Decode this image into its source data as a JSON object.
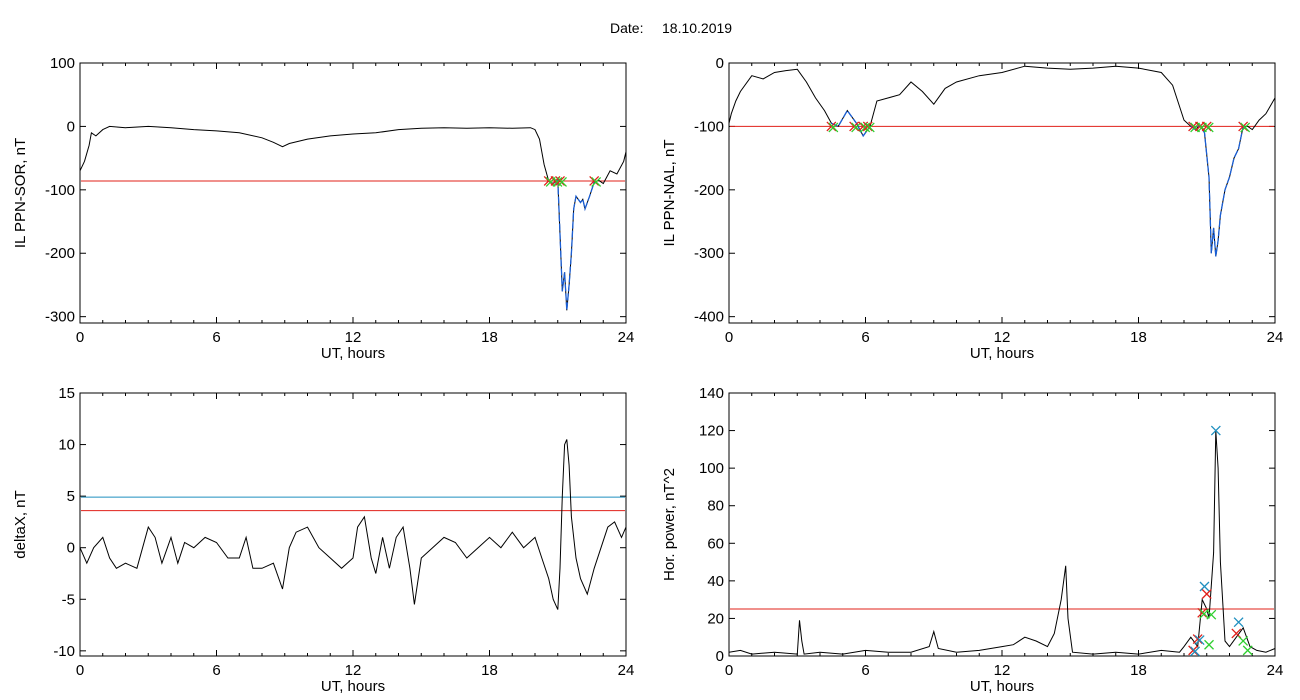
{
  "header": {
    "date_label": "Date:",
    "date_value": "18.10.2019"
  },
  "colors": {
    "data": "#000000",
    "threshold_red": "#e0201a",
    "threshold_blue": "#1f8fbf",
    "segment_blue": "#1a5fd6",
    "marker_red": "#e0201a",
    "marker_green": "#2fcf2f",
    "marker_blue": "#1f8fbf"
  },
  "chart_data": [
    {
      "id": "sor",
      "type": "line",
      "xlabel": "UT, hours",
      "ylabel": "IL PPN-SOR, nT",
      "xlim": [
        0,
        24
      ],
      "ylim": [
        -310,
        100
      ],
      "xticks": [
        0,
        6,
        12,
        18,
        24
      ],
      "yticks": [
        100,
        0,
        -100,
        -200,
        -300
      ],
      "thresholds": [
        {
          "color": "red",
          "y": -86
        }
      ],
      "series": [
        {
          "x": [
            0,
            0.2,
            0.4,
            0.5,
            0.7,
            1,
            1.3,
            2,
            3,
            4,
            5,
            6,
            7,
            8,
            8.5,
            8.9,
            9.2,
            10,
            11,
            12,
            13,
            14,
            15,
            16,
            17,
            18,
            19,
            19.8,
            20,
            20.2,
            20.4,
            20.6,
            20.8,
            21,
            21.1,
            21.2,
            21.3,
            21.4,
            21.5,
            21.6,
            21.7,
            21.8,
            21.9,
            22,
            22.1,
            22.2,
            22.4,
            22.6,
            22.8,
            23,
            23.3,
            23.6,
            23.9,
            24
          ],
          "y": [
            -70,
            -55,
            -30,
            -10,
            -15,
            -5,
            0,
            -2,
            0,
            -2,
            -5,
            -7,
            -10,
            -18,
            -25,
            -32,
            -27,
            -20,
            -15,
            -12,
            -10,
            -5,
            -3,
            -2,
            -3,
            -2,
            -3,
            -2,
            -5,
            -20,
            -60,
            -86,
            -90,
            -85,
            -170,
            -260,
            -230,
            -290,
            -250,
            -200,
            -130,
            -110,
            -115,
            -120,
            -115,
            -130,
            -110,
            -88,
            -85,
            -90,
            -70,
            -75,
            -55,
            -40
          ]
        }
      ],
      "highlight_segments": [
        {
          "x_start": 20.6,
          "x_end": 22.6,
          "color": "blue"
        }
      ],
      "markers": [
        {
          "x": 20.6,
          "y": -86,
          "colors": [
            "red",
            "green"
          ]
        },
        {
          "x": 20.9,
          "y": -86,
          "colors": [
            "red",
            "green"
          ]
        },
        {
          "x": 21.1,
          "y": -86,
          "colors": [
            "red",
            "green"
          ]
        },
        {
          "x": 22.6,
          "y": -86,
          "colors": [
            "red",
            "green"
          ]
        }
      ]
    },
    {
      "id": "nal",
      "type": "line",
      "xlabel": "UT, hours",
      "ylabel": "IL PPN-NAL, nT",
      "xlim": [
        0,
        24
      ],
      "ylim": [
        -410,
        0
      ],
      "xticks": [
        0,
        6,
        12,
        18,
        24
      ],
      "yticks": [
        0,
        -100,
        -200,
        -300,
        -400
      ],
      "thresholds": [
        {
          "color": "red",
          "y": -100
        }
      ],
      "series": [
        {
          "x": [
            0,
            0.1,
            0.3,
            0.5,
            1,
            1.5,
            2,
            2.5,
            3,
            3.4,
            3.8,
            4.2,
            4.5,
            4.8,
            5.2,
            5.6,
            5.9,
            6.2,
            6.5,
            7,
            7.5,
            8,
            8.5,
            9,
            9.5,
            10,
            11,
            12,
            13,
            14,
            15,
            16,
            17,
            18,
            19,
            19.5,
            20,
            20.3,
            20.5,
            20.7,
            20.9,
            21.1,
            21.2,
            21.3,
            21.4,
            21.5,
            21.6,
            21.8,
            22,
            22.2,
            22.4,
            22.6,
            22.8,
            23,
            23.3,
            23.6,
            24
          ],
          "y": [
            -95,
            -80,
            -60,
            -45,
            -20,
            -25,
            -15,
            -12,
            -10,
            -30,
            -55,
            -75,
            -95,
            -100,
            -75,
            -95,
            -115,
            -100,
            -60,
            -55,
            -50,
            -30,
            -45,
            -65,
            -40,
            -30,
            -20,
            -15,
            -5,
            -8,
            -10,
            -8,
            -5,
            -8,
            -15,
            -35,
            -90,
            -100,
            -105,
            -98,
            -110,
            -180,
            -300,
            -260,
            -305,
            -280,
            -240,
            -200,
            -180,
            -150,
            -135,
            -100,
            -100,
            -105,
            -90,
            -80,
            -55
          ]
        }
      ],
      "highlight_segments": [
        {
          "x_start": 4.5,
          "x_end": 6.2,
          "color": "blue"
        },
        {
          "x_start": 20.3,
          "x_end": 22.6,
          "color": "blue"
        }
      ],
      "markers": [
        {
          "x": 4.5,
          "y": -100,
          "colors": [
            "red",
            "green"
          ]
        },
        {
          "x": 5.5,
          "y": -100,
          "colors": [
            "red",
            "green"
          ]
        },
        {
          "x": 5.9,
          "y": -100,
          "colors": [
            "red",
            "green"
          ]
        },
        {
          "x": 6.1,
          "y": -100,
          "colors": [
            "red",
            "green"
          ]
        },
        {
          "x": 20.4,
          "y": -100,
          "colors": [
            "red",
            "green"
          ]
        },
        {
          "x": 20.7,
          "y": -100,
          "colors": [
            "red",
            "green"
          ]
        },
        {
          "x": 21.0,
          "y": -100,
          "colors": [
            "red",
            "green"
          ]
        },
        {
          "x": 22.6,
          "y": -100,
          "colors": [
            "red",
            "green"
          ]
        }
      ]
    },
    {
      "id": "deltax",
      "type": "line",
      "xlabel": "UT, hours",
      "ylabel": "deltaX, nT",
      "xlim": [
        0,
        24
      ],
      "ylim": [
        -10.5,
        15
      ],
      "xticks": [
        0,
        6,
        12,
        18,
        24
      ],
      "yticks": [
        15,
        10,
        5,
        0,
        -5,
        -10
      ],
      "thresholds": [
        {
          "color": "blue",
          "y": 4.9
        },
        {
          "color": "red",
          "y": 3.6
        }
      ],
      "series": [
        {
          "x": [
            0,
            0.3,
            0.6,
            1,
            1.3,
            1.6,
            2,
            2.5,
            3,
            3.3,
            3.6,
            4,
            4.3,
            4.6,
            5,
            5.5,
            6,
            6.5,
            7,
            7.3,
            7.6,
            8,
            8.5,
            8.9,
            9.2,
            9.5,
            10,
            10.5,
            11,
            11.5,
            12,
            12.2,
            12.5,
            12.8,
            13,
            13.3,
            13.6,
            13.9,
            14.2,
            14.5,
            14.7,
            15,
            15.5,
            16,
            16.5,
            17,
            17.5,
            18,
            18.5,
            19,
            19.5,
            20,
            20.3,
            20.6,
            20.8,
            21,
            21.1,
            21.2,
            21.3,
            21.4,
            21.5,
            21.6,
            21.8,
            22,
            22.3,
            22.6,
            22.9,
            23.2,
            23.5,
            23.8,
            24
          ],
          "y": [
            0,
            -1.5,
            0,
            1,
            -1,
            -2,
            -1.5,
            -2,
            2,
            1,
            -1.5,
            1,
            -1.5,
            0.5,
            0,
            1,
            0.5,
            -1,
            -1,
            1,
            -2,
            -2,
            -1.5,
            -4,
            0,
            1.5,
            2,
            0,
            -1,
            -2,
            -1,
            2,
            3,
            -1,
            -2.5,
            1,
            -2,
            1,
            2,
            -2,
            -5.5,
            -1,
            0,
            1,
            0.5,
            -1,
            0,
            1,
            0,
            1.5,
            0,
            1,
            -1,
            -3,
            -5,
            -6,
            -2,
            5,
            10,
            10.5,
            8,
            3,
            -1,
            -3,
            -4.5,
            -2,
            0,
            2,
            2.5,
            1,
            2
          ]
        }
      ],
      "highlight_segments": [],
      "markers": []
    },
    {
      "id": "power",
      "type": "line",
      "xlabel": "UT, hours",
      "ylabel": "Hor. power, nT^2",
      "xlim": [
        0,
        24
      ],
      "ylim": [
        0,
        140
      ],
      "xticks": [
        0,
        6,
        12,
        18,
        24
      ],
      "yticks": [
        140,
        120,
        100,
        80,
        60,
        40,
        20,
        0
      ],
      "thresholds": [
        {
          "color": "red",
          "y": 25
        }
      ],
      "series": [
        {
          "x": [
            0,
            0.5,
            1,
            2,
            3,
            3.05,
            3.1,
            3.2,
            3.3,
            4,
            5,
            6,
            7,
            8,
            8.8,
            9,
            9.2,
            10,
            11,
            12,
            12.5,
            13,
            13.5,
            14,
            14.3,
            14.6,
            14.8,
            14.9,
            15.1,
            16,
            17,
            18,
            19,
            19.8,
            20,
            20.3,
            20.6,
            20.8,
            21,
            21.1,
            21.3,
            21.4,
            21.5,
            21.6,
            21.8,
            22,
            22.3,
            22.6,
            22.9,
            23.2,
            23.6,
            24
          ],
          "y": [
            2,
            3,
            1,
            2,
            1,
            10,
            19,
            8,
            1,
            2,
            1,
            3,
            2,
            2,
            5,
            13,
            4,
            2,
            3,
            5,
            6,
            10,
            8,
            5,
            12,
            30,
            48,
            20,
            2,
            1,
            2,
            1,
            3,
            2,
            5,
            10,
            5,
            30,
            25,
            20,
            55,
            120,
            100,
            50,
            8,
            5,
            10,
            15,
            5,
            3,
            2,
            4
          ]
        }
      ],
      "highlight_segments": [],
      "markers": [
        {
          "x": 20.4,
          "y": 3,
          "colors": [
            "red",
            "blue"
          ]
        },
        {
          "x": 20.6,
          "y": 9,
          "colors": [
            "red",
            "blue"
          ]
        },
        {
          "x": 20.8,
          "y": 23,
          "colors": [
            "red",
            "green"
          ]
        },
        {
          "x": 20.9,
          "y": 37,
          "colors": [
            "blue"
          ]
        },
        {
          "x": 21.0,
          "y": 33,
          "colors": [
            "red"
          ]
        },
        {
          "x": 21.1,
          "y": 6,
          "colors": [
            "green"
          ]
        },
        {
          "x": 21.2,
          "y": 22,
          "colors": [
            "green"
          ]
        },
        {
          "x": 21.4,
          "y": 120,
          "colors": [
            "blue"
          ]
        },
        {
          "x": 22.3,
          "y": 12,
          "colors": [
            "red"
          ]
        },
        {
          "x": 22.4,
          "y": 18,
          "colors": [
            "blue"
          ]
        },
        {
          "x": 22.6,
          "y": 8,
          "colors": [
            "green"
          ]
        },
        {
          "x": 22.8,
          "y": 3,
          "colors": [
            "green"
          ]
        }
      ]
    }
  ]
}
